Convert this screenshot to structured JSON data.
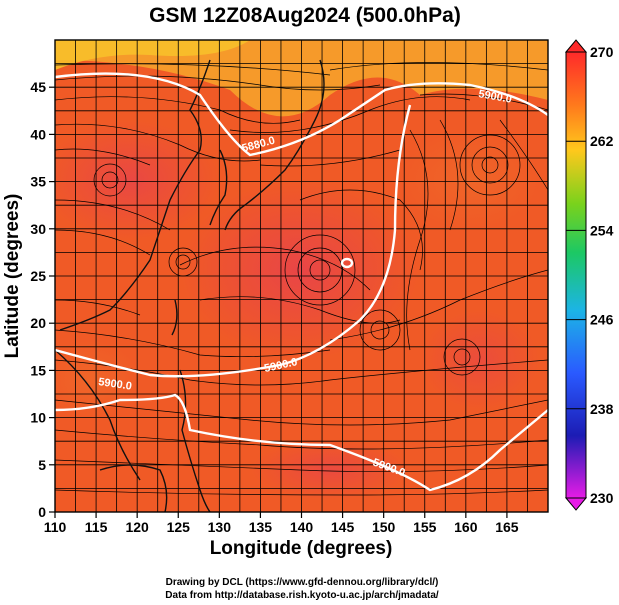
{
  "title": "GSM 12Z08Aug2024 (500.0hPa)",
  "xlabel": "Longitude (degrees)",
  "ylabel": "Latitude  (degrees)",
  "credits": [
    "Drawing by DCL (https://www.gfd-dennou.org/library/dcl/)",
    "Data from http://database.rish.kyoto-u.ac.jp/arch/jmadata/"
  ],
  "map": {
    "lon_range": [
      110,
      170
    ],
    "lat_range": [
      0,
      50
    ],
    "x_ticks": [
      "110",
      "115",
      "120",
      "125",
      "130",
      "135",
      "140",
      "145",
      "150",
      "155",
      "160",
      "165"
    ],
    "y_ticks": [
      "0",
      "5",
      "10",
      "15",
      "20",
      "25",
      "30",
      "35",
      "40",
      "45"
    ],
    "contour_labels": [
      "5900.0",
      "5880.0",
      "5900.0",
      "5900.0",
      "5900.0"
    ],
    "colorbar": {
      "ticks": [
        "270",
        "262",
        "254",
        "246",
        "238",
        "230"
      ],
      "colors": [
        "#ff2a2a",
        "#ff8a1c",
        "#ffd21c",
        "#9bd11c",
        "#1cc864",
        "#1cb4e6",
        "#2a5aff",
        "#1c1cb4",
        "#e61ce6"
      ]
    }
  }
}
